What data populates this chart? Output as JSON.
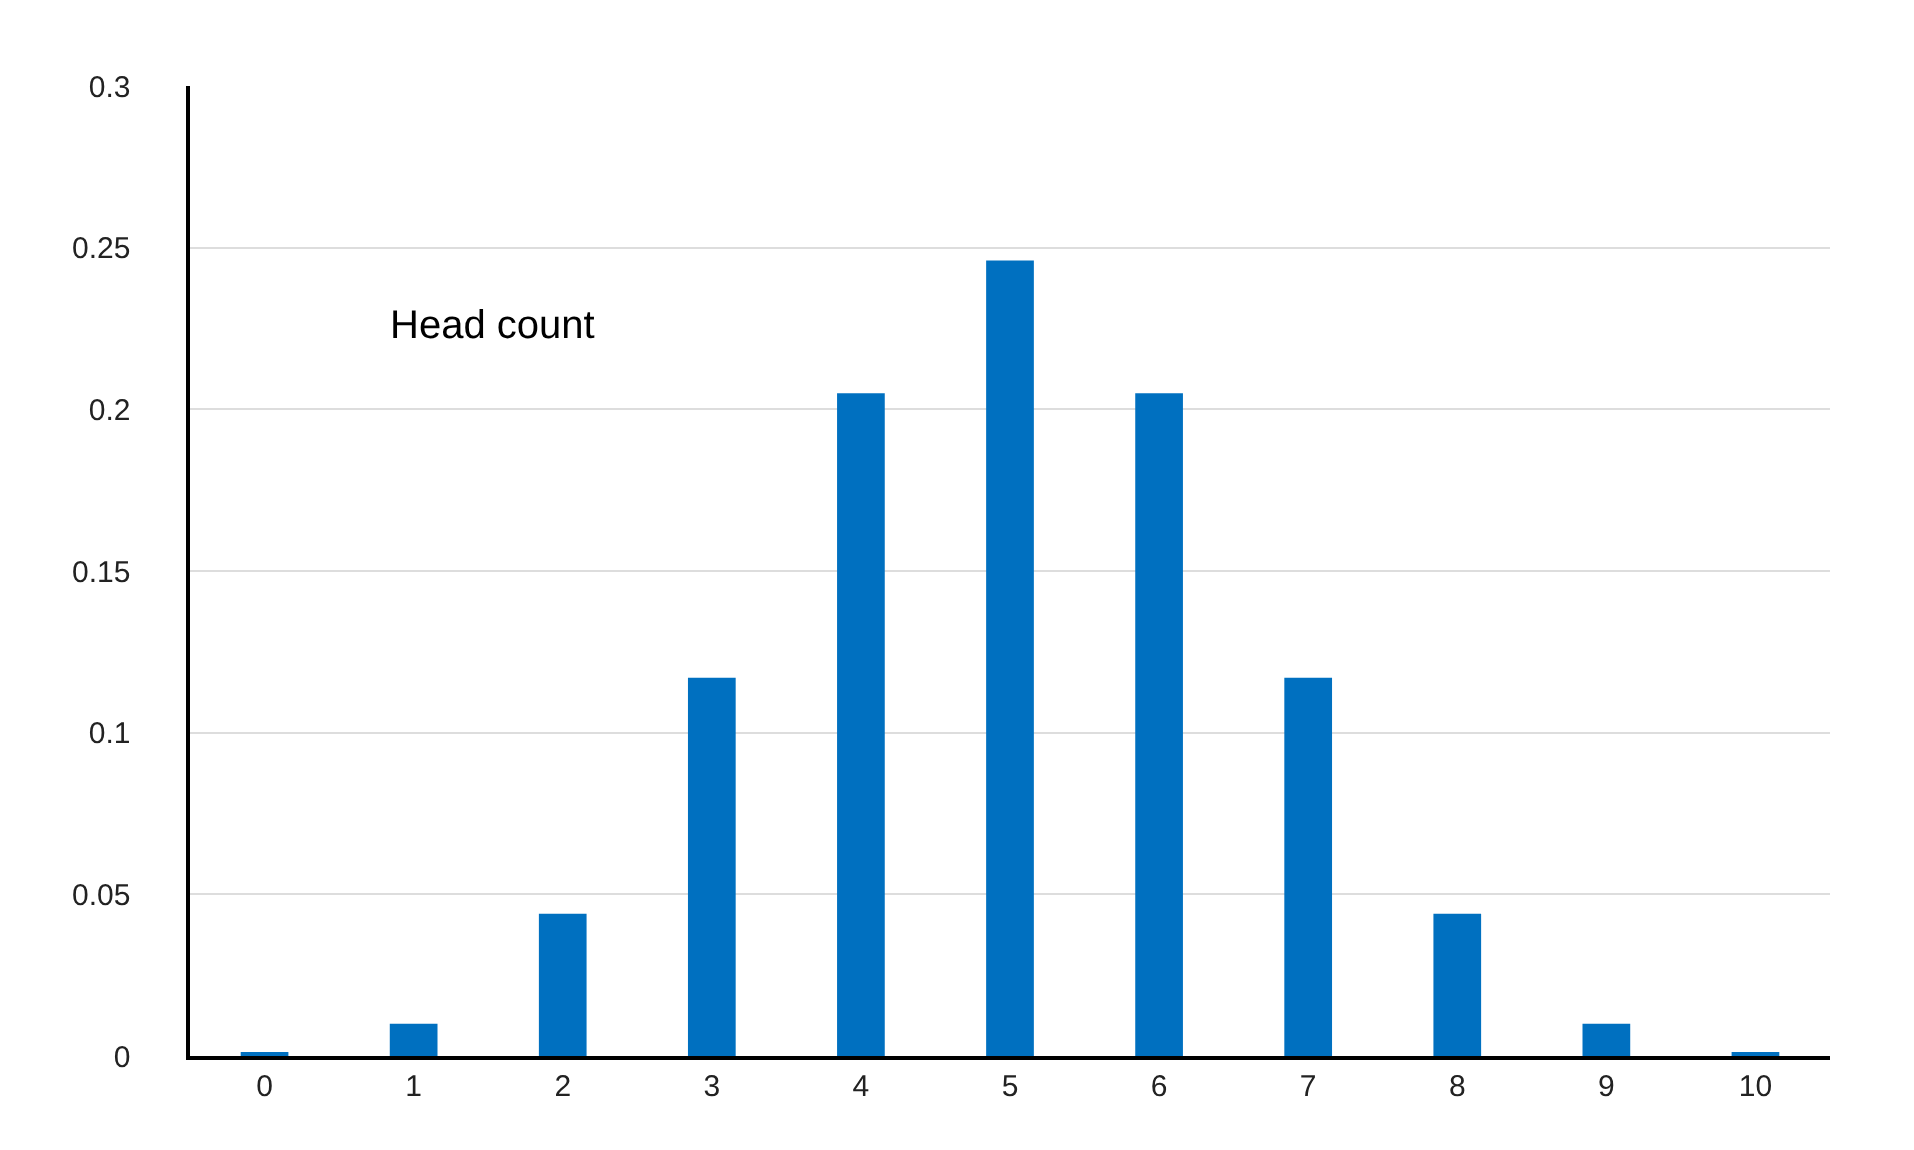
{
  "chart_data": {
    "type": "bar",
    "title": "Head count",
    "categories": [
      "0",
      "1",
      "2",
      "3",
      "4",
      "5",
      "6",
      "7",
      "8",
      "9",
      "10"
    ],
    "values": [
      0.001,
      0.01,
      0.044,
      0.117,
      0.205,
      0.246,
      0.205,
      0.117,
      0.044,
      0.01,
      0.001
    ],
    "color": "#0070c0",
    "ylim": [
      0,
      0.3
    ],
    "yticks": [
      0,
      0.05,
      0.1,
      0.15,
      0.2,
      0.25,
      0.3
    ],
    "grid": "y"
  }
}
